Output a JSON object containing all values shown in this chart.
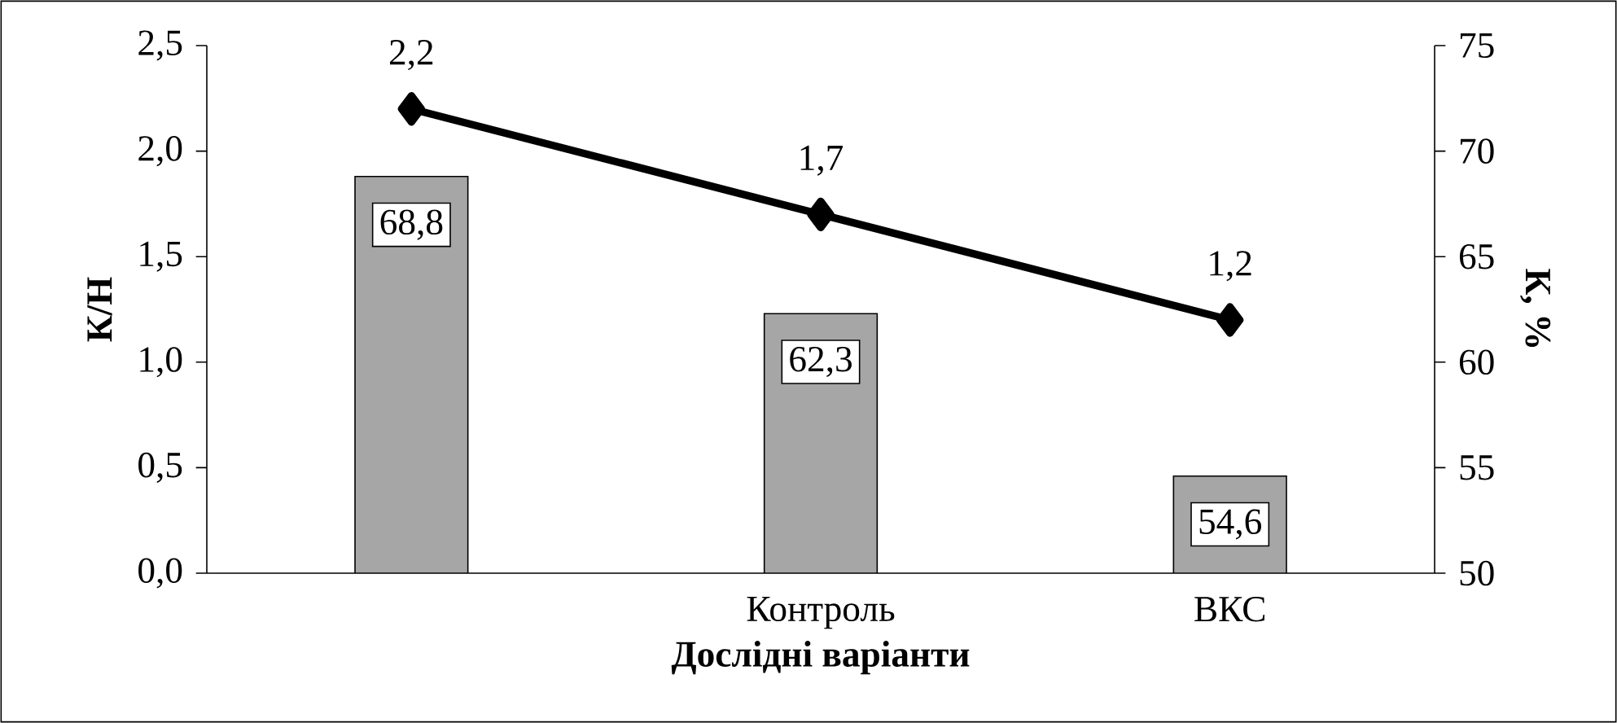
{
  "chart_data": {
    "type": "bar",
    "xlabel": "Дослідні варіанти",
    "ylabel": "К/Н",
    "y2label": "К, %",
    "categories": [
      null,
      "Контроль",
      "ВКС"
    ],
    "series": [
      {
        "axis": "y2",
        "color": "#a6a6a6",
        "values": [
          68.8,
          62.3,
          54.6
        ],
        "value_labels": [
          "68,8",
          "62,3",
          "54,6"
        ]
      },
      {
        "type": "line",
        "color": "#000000",
        "values": [
          2.2,
          1.7,
          1.2
        ],
        "value_labels": [
          "2,2",
          "1,7",
          "1,2"
        ]
      }
    ],
    "marker": "diamond",
    "line_style": "solid",
    "ylim": [
      0,
      2.5
    ],
    "yticks": [
      {
        "value": 0,
        "label": "0,0"
      },
      {
        "value": 0.5,
        "label": "0,5"
      },
      {
        "value": 1,
        "label": "1,0"
      },
      {
        "value": 1.5,
        "label": "1,5"
      },
      {
        "value": 2,
        "label": "2,0"
      },
      {
        "value": 2.5,
        "label": "2,5"
      }
    ],
    "y2lim": [
      50,
      75
    ],
    "y2ticks": [
      50,
      55,
      60,
      65,
      70,
      75
    ],
    "grid": false
  }
}
